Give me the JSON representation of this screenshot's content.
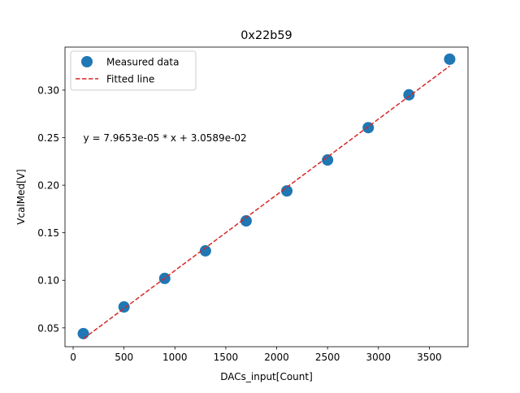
{
  "chart_data": {
    "type": "scatter",
    "title": "0x22b59",
    "xlabel": "DACs_input[Count]",
    "ylabel": "VcalMed[V]",
    "xlim": [
      -80,
      3880
    ],
    "ylim": [
      0.0302,
      0.3452
    ],
    "xticks": [
      0,
      500,
      1000,
      1500,
      2000,
      2500,
      3000,
      3500
    ],
    "xtick_labels": [
      "0",
      "500",
      "1000",
      "1500",
      "2000",
      "2500",
      "3000",
      "3500"
    ],
    "yticks": [
      0.05,
      0.1,
      0.15,
      0.2,
      0.25,
      0.3
    ],
    "ytick_labels": [
      "0.05",
      "0.10",
      "0.15",
      "0.20",
      "0.25",
      "0.30"
    ],
    "grid": false,
    "legend_position": "top-left",
    "series": [
      {
        "name": "Measured data",
        "kind": "scatter",
        "color": "#1f77b4",
        "x": [
          100,
          500,
          900,
          1300,
          1700,
          2100,
          2500,
          2900,
          3300,
          3700
        ],
        "y": [
          0.044,
          0.072,
          0.102,
          0.131,
          0.1625,
          0.194,
          0.2265,
          0.2605,
          0.295,
          0.3325
        ]
      },
      {
        "name": "Fitted line",
        "kind": "dashed-line",
        "color": "#d62728",
        "x": [
          100,
          3700
        ],
        "y": [
          0.038554,
          0.325305
        ]
      }
    ],
    "annotation": {
      "text": "y = 7.9653e-05 * x + 3.0589e-02",
      "x": 100,
      "y": 0.25
    }
  }
}
